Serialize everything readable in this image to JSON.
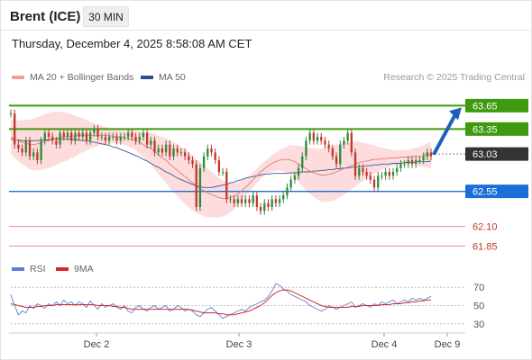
{
  "header": {
    "instrument": "Brent (ICE)",
    "timeframe": "30 MIN",
    "datetime": "Thursday, December 4, 2025 8:58:08 AM CET",
    "credit": "Research © 2025 Trading Central"
  },
  "legend": {
    "ma20_label": "MA 20 + Bollinger Bands",
    "ma50_label": "MA 50",
    "rsi_label": "RSI",
    "rsi_ma_label": "9MA"
  },
  "colors": {
    "resistance": "#3f9a10",
    "support": "#1a6fd6",
    "target_low": "#f28b8b",
    "last_price": "#3a3a3a",
    "ma20": "#e87a7a",
    "ma50": "#3d5a99",
    "bollinger_fill": "#fbd0d0",
    "candle_up": "#2e8b3c",
    "candle_down": "#c0392b",
    "rsi": "#5b7fd6",
    "rsi_ma": "#d42a2a",
    "arrow": "#1f5fb8"
  },
  "chart_data": {
    "type": "candlestick",
    "interval": "30 MIN",
    "levels": [
      {
        "value": 63.65,
        "label": "63.65",
        "kind": "resistance"
      },
      {
        "value": 63.35,
        "label": "63.35",
        "kind": "resistance"
      },
      {
        "value": 63.03,
        "label": "63.03",
        "kind": "last"
      },
      {
        "value": 62.55,
        "label": "62.55",
        "kind": "support"
      },
      {
        "value": 62.1,
        "label": "62.10",
        "kind": "target"
      },
      {
        "value": 61.85,
        "label": "61.85",
        "kind": "target"
      }
    ],
    "y_range": [
      61.75,
      63.85
    ],
    "x_labels": [
      "Dec 2",
      "Dec 3",
      "Dec 4",
      "Dec 9"
    ],
    "closes": [
      63.55,
      63.15,
      63.1,
      63.05,
      63.2,
      63.0,
      63.05,
      62.95,
      63.2,
      63.3,
      63.25,
      63.2,
      63.15,
      63.3,
      63.25,
      63.3,
      63.2,
      63.3,
      63.25,
      63.3,
      63.2,
      63.3,
      63.35,
      63.25,
      63.25,
      63.2,
      63.25,
      63.25,
      63.2,
      63.25,
      63.25,
      63.3,
      63.25,
      63.2,
      63.25,
      63.3,
      63.15,
      63.2,
      63.05,
      63.1,
      63.05,
      63.15,
      63.0,
      63.1,
      63.05,
      63.05,
      63.0,
      62.95,
      62.9,
      62.35,
      62.85,
      63.0,
      63.1,
      63.05,
      62.95,
      62.8,
      62.8,
      62.45,
      62.45,
      62.4,
      62.45,
      62.4,
      62.45,
      62.4,
      62.5,
      62.35,
      62.3,
      62.4,
      62.35,
      62.45,
      62.4,
      62.45,
      62.5,
      62.6,
      62.7,
      62.75,
      62.85,
      63.0,
      63.2,
      63.3,
      63.2,
      63.25,
      63.2,
      63.15,
      63.1,
      63.0,
      62.9,
      63.15,
      63.2,
      63.3,
      63.05,
      62.75,
      62.85,
      62.8,
      62.75,
      62.7,
      62.6,
      62.75,
      62.75,
      62.8,
      62.75,
      62.8,
      62.85,
      62.9,
      62.9,
      62.95,
      62.9,
      62.95,
      62.95,
      63.0,
      63.05,
      63.0
    ],
    "ma20": [
      63.25,
      63.22,
      63.2,
      63.18,
      63.17,
      63.15,
      63.15,
      63.16,
      63.17,
      63.19,
      63.2,
      63.22,
      63.23,
      63.24,
      63.25,
      63.25,
      63.26,
      63.26,
      63.27,
      63.27,
      63.27,
      63.27,
      63.27,
      63.27,
      63.27,
      63.27,
      63.26,
      63.26,
      63.25,
      63.25,
      63.24,
      63.23,
      63.22,
      63.2,
      63.18,
      63.15,
      63.12,
      63.1,
      63.06,
      63.02,
      62.98,
      62.95,
      62.9,
      62.86,
      62.82,
      62.78,
      62.74,
      62.7,
      62.66,
      62.62,
      62.59,
      62.56,
      62.53,
      62.51,
      62.49,
      62.47,
      62.46,
      62.46,
      62.47,
      62.49,
      62.52,
      62.56,
      62.6,
      62.65,
      62.7,
      62.75,
      62.8,
      62.84,
      62.88,
      62.91,
      62.93,
      62.95,
      62.96,
      62.96,
      62.95,
      62.93,
      62.9,
      62.87,
      62.84,
      62.81,
      62.79,
      62.77,
      62.76,
      62.76,
      62.77,
      62.78,
      62.8,
      62.82,
      62.84,
      62.86,
      62.88,
      62.9,
      62.92,
      62.93,
      62.94,
      62.95,
      62.96,
      62.96,
      62.97,
      62.97,
      62.98,
      62.98,
      62.98,
      62.99,
      62.99,
      62.99,
      63.0,
      63.0,
      63.0,
      63.0,
      63.01,
      63.01
    ],
    "ma50": [
      63.22,
      63.21,
      63.21,
      63.2,
      63.2,
      63.2,
      63.2,
      63.2,
      63.21,
      63.21,
      63.21,
      63.22,
      63.22,
      63.22,
      63.22,
      63.22,
      63.22,
      63.21,
      63.21,
      63.2,
      63.2,
      63.19,
      63.18,
      63.17,
      63.16,
      63.15,
      63.14,
      63.12,
      63.11,
      63.09,
      63.07,
      63.05,
      63.03,
      63.01,
      62.99,
      62.96,
      62.94,
      62.91,
      62.88,
      62.86,
      62.83,
      62.8,
      62.78,
      62.75,
      62.72,
      62.7,
      62.68,
      62.66,
      62.64,
      62.62,
      62.61,
      62.6,
      62.6,
      62.6,
      62.61,
      62.62,
      62.63,
      62.64,
      62.66,
      62.67,
      62.69,
      62.7,
      62.72,
      62.73,
      62.74,
      62.75,
      62.76,
      62.77,
      62.77,
      62.78,
      62.78,
      62.78,
      62.78,
      62.78,
      62.79,
      62.79,
      62.79,
      62.8,
      62.8,
      62.8,
      62.81,
      62.81,
      62.82,
      62.82,
      62.83,
      62.83,
      62.84,
      62.84,
      62.85,
      62.85,
      62.86,
      62.86,
      62.87,
      62.87,
      62.88,
      62.88,
      62.89,
      62.89,
      62.9,
      62.9,
      62.9,
      62.91,
      62.91,
      62.91,
      62.92,
      62.92,
      62.92,
      62.93,
      62.93,
      62.93,
      62.93,
      62.94
    ],
    "forecast_target": 63.65,
    "rsi": {
      "levels": [
        70,
        50,
        30
      ],
      "ylim": [
        20,
        80
      ],
      "rsi_values": [
        62,
        50,
        40,
        44,
        42,
        50,
        47,
        52,
        50,
        47,
        52,
        50,
        54,
        50,
        56,
        52,
        54,
        50,
        54,
        52,
        48,
        55,
        50,
        46,
        52,
        48,
        50,
        52,
        48,
        46,
        50,
        44,
        42,
        48,
        50,
        46,
        44,
        48,
        50,
        46,
        48,
        50,
        44,
        46,
        50,
        48,
        44,
        46,
        44,
        40,
        38,
        42,
        46,
        48,
        44,
        40,
        36,
        38,
        40,
        42,
        44,
        46,
        44,
        48,
        50,
        52,
        54,
        56,
        60,
        66,
        74,
        72,
        68,
        66,
        62,
        60,
        58,
        56,
        54,
        50,
        48,
        46,
        44,
        46,
        50,
        48,
        46,
        48,
        50,
        52,
        54,
        48,
        50,
        52,
        50,
        48,
        52,
        50,
        54,
        52,
        54,
        56,
        52,
        54,
        56,
        54,
        58,
        56,
        58,
        56,
        58,
        60
      ],
      "rsi_ma_values": [
        52,
        51,
        50,
        49,
        48,
        48,
        48,
        49,
        49,
        50,
        50,
        50,
        51,
        51,
        51,
        51,
        51,
        51,
        51,
        51,
        51,
        51,
        51,
        50,
        50,
        50,
        50,
        49,
        49,
        48,
        48,
        47,
        46,
        46,
        46,
        46,
        46,
        46,
        46,
        46,
        46,
        46,
        46,
        46,
        46,
        46,
        46,
        46,
        45,
        44,
        43,
        42,
        42,
        42,
        42,
        41,
        41,
        40,
        40,
        40,
        41,
        42,
        43,
        44,
        46,
        48,
        50,
        53,
        57,
        61,
        64,
        66,
        67,
        67,
        66,
        64,
        62,
        60,
        58,
        56,
        54,
        52,
        50,
        49,
        48,
        48,
        48,
        48,
        48,
        48,
        49,
        49,
        49,
        50,
        50,
        50,
        50,
        50,
        51,
        51,
        51,
        52,
        52,
        52,
        53,
        53,
        54,
        54,
        55,
        55,
        56,
        56
      ]
    }
  }
}
